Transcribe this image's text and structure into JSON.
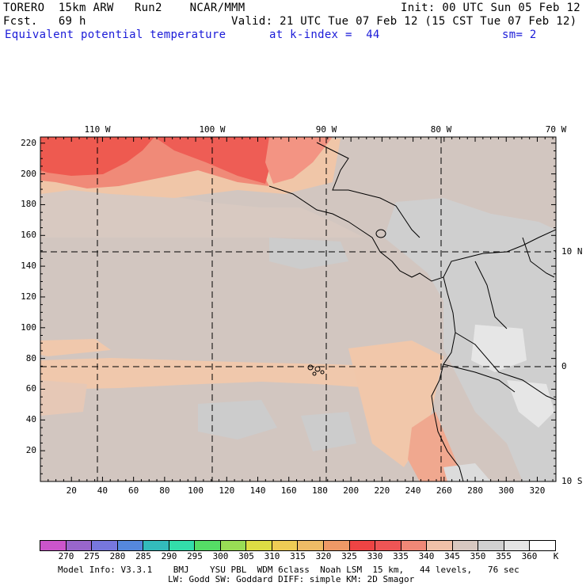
{
  "header": {
    "model_line": "TORERO  15km ARW   Run2    NCAR/MMM",
    "init": "Init: 00 UTC Sun 05 Feb 12",
    "forecast": "Fcst.   69 h",
    "valid": "Valid: 21 UTC Tue 07 Feb 12 (15 CST Tue 07 Feb 12)",
    "field": "Equivalent potential temperature",
    "level": "at k-index =  44",
    "smoothing": "sm= 2"
  },
  "map": {
    "x_ticks": [
      "20",
      "40",
      "60",
      "80",
      "100",
      "120",
      "140",
      "160",
      "180",
      "200",
      "220",
      "240",
      "260",
      "280",
      "300",
      "320"
    ],
    "y_ticks": [
      "20",
      "40",
      "60",
      "80",
      "100",
      "120",
      "140",
      "160",
      "180",
      "200",
      "220"
    ],
    "longitude_labels": [
      "110 W",
      "100 W",
      "90 W",
      "80 W",
      "70 W"
    ],
    "latitude_labels": [
      "10 N",
      "0",
      "10 S"
    ]
  },
  "colorbar": {
    "colors": [
      "#cc55cc",
      "#9966cc",
      "#7777dd",
      "#5588dd",
      "#33bbbb",
      "#33ddaa",
      "#55dd66",
      "#99dd55",
      "#dddd44",
      "#eecc55",
      "#eebb66",
      "#ee9966",
      "#ee4444",
      "#ee5555",
      "#f08877",
      "#f0c0a8",
      "#d8c8c0",
      "#d0d0d0",
      "#e4e4e4",
      "#ffffff"
    ],
    "labels": [
      "270",
      "275",
      "280",
      "285",
      "290",
      "295",
      "300",
      "305",
      "310",
      "315",
      "320",
      "325",
      "330",
      "335",
      "340",
      "345",
      "350",
      "355",
      "360"
    ],
    "unit": "K"
  },
  "footer": {
    "line1": "Model Info: V3.3.1    BMJ    YSU PBL  WDM 6class  Noah LSM  15 km,   44 levels,   76 sec",
    "line2": "LW: Godd SW: Goddard DIFF: simple KM: 2D Smagor"
  }
}
